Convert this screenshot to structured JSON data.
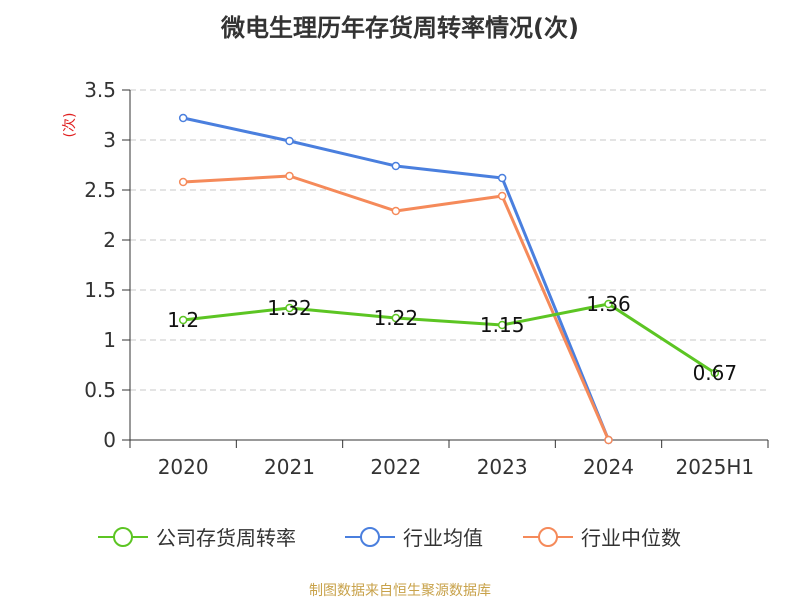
{
  "title": "微电生理历年存货周转率情况(次)",
  "source": "制图数据来自恒生聚源数据库",
  "colors": {
    "company": "#5cc523",
    "industry_avg": "#4a7fde",
    "industry_median": "#f58a5a"
  },
  "chart_data": {
    "type": "line",
    "title": "微电生理历年存货周转率情况(次)",
    "ylabel": "(次)",
    "xlabel": "",
    "categories": [
      "2020",
      "2021",
      "2022",
      "2023",
      "2024",
      "2025H1"
    ],
    "ylim": [
      0,
      3.5
    ],
    "yticks": [
      0,
      0.5,
      1,
      1.5,
      2,
      2.5,
      3,
      3.5
    ],
    "yticks_labels": [
      "0",
      "0.5",
      "1",
      "1.5",
      "2",
      "2.5",
      "3",
      "3.5"
    ],
    "grid": true,
    "legend_position": "bottom",
    "series": [
      {
        "name": "公司存货周转率",
        "values": [
          1.2,
          1.32,
          1.22,
          1.15,
          1.36,
          0.67
        ],
        "labels": [
          "1.2",
          "1.32",
          "1.22",
          "1.15",
          "1.36",
          "0.67"
        ],
        "color": "#5cc523"
      },
      {
        "name": "行业均值",
        "values": [
          3.22,
          2.99,
          2.74,
          2.62,
          0,
          null
        ],
        "color": "#4a7fde"
      },
      {
        "name": "行业中位数",
        "values": [
          2.58,
          2.64,
          2.29,
          2.44,
          0,
          null
        ],
        "color": "#f58a5a"
      }
    ]
  }
}
